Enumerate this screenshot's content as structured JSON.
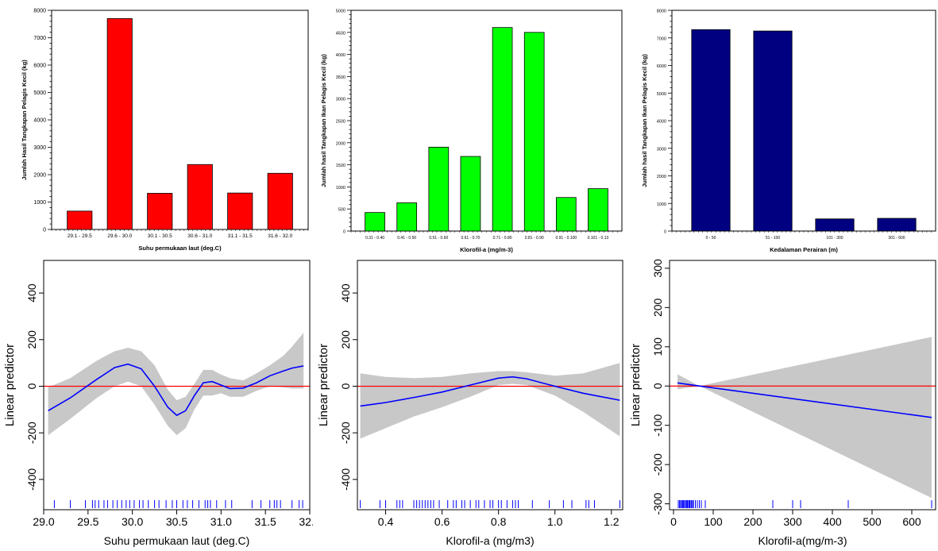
{
  "colors": {
    "red_bar": "#ff0000",
    "green_bar": "#00ff00",
    "navy_bar": "#000080",
    "gam_line": "#0000ff",
    "zero_line": "#ff0000",
    "band": "#c8c8c8",
    "rug": "#0000ff"
  },
  "chart_data": [
    {
      "type": "bar",
      "id": "bar-sst",
      "xlabel": "Suhu permukaan laut (deg.C)",
      "ylabel": "Jumlah Hasil Tangkapan Pelagis Kecil (kg)",
      "categories": [
        "29.1 - 29.5",
        "29.6 - 30.0",
        "30.1 - 30.5",
        "30.6 - 31.0",
        "31.1 - 31.5",
        "31.6 - 32.0"
      ],
      "values": [
        670,
        7700,
        1320,
        2370,
        1330,
        2050
      ],
      "ylim": [
        0,
        8000
      ],
      "yticks": [
        0,
        1000,
        2000,
        3000,
        4000,
        5000,
        6000,
        7000,
        8000
      ],
      "color": "red_bar"
    },
    {
      "type": "bar",
      "id": "bar-chl",
      "xlabel": "Klorofil-a (mg/m-3)",
      "ylabel": "Jumlah hasil Tangkapan Ikan Pelagis Kecil (kg)",
      "categories": [
        "0.31 - 0.40",
        "0.41 - 0.50",
        "0.51 - 0.60",
        "0.61 - 0.70",
        "0.71 - 0.80",
        "0.81 - 0.90",
        "0.91 - 0.100",
        "0.101 - 0.13"
      ],
      "values": [
        420,
        640,
        1900,
        1690,
        4610,
        4500,
        760,
        960
      ],
      "ylim": [
        0,
        5000
      ],
      "yticks": [
        0,
        500,
        1000,
        1500,
        2000,
        2500,
        3000,
        3500,
        4000,
        4500,
        5000
      ],
      "color": "green_bar"
    },
    {
      "type": "bar",
      "id": "bar-depth",
      "xlabel": "Kedalaman Perairan (m)",
      "ylabel": "Jumlah hasil Tangkapan Ikan  Pelagis Kecil (kg)",
      "categories": [
        "0 - 50",
        "51 - 100",
        "101 - 300",
        "301 - 600"
      ],
      "values": [
        7300,
        7250,
        440,
        460
      ],
      "ylim": [
        0,
        8000
      ],
      "yticks": [
        0,
        1000,
        2000,
        3000,
        4000,
        5000,
        6000,
        7000,
        8000
      ],
      "color": "navy_bar"
    },
    {
      "type": "line",
      "id": "gam-sst",
      "xlabel": "Suhu permukaan laut (deg.C)",
      "ylabel": "Linear predictor",
      "xlim": [
        29.0,
        32.0
      ],
      "ylim": [
        -530,
        540
      ],
      "xticks": [
        "29.0",
        "29.5",
        "30.0",
        "30.5",
        "31.0",
        "31.5",
        "32.0"
      ],
      "yticks": [
        -400,
        -200,
        0,
        200,
        400
      ],
      "x": [
        29.05,
        29.3,
        29.6,
        29.8,
        29.95,
        30.1,
        30.25,
        30.4,
        30.5,
        30.6,
        30.7,
        30.8,
        30.9,
        31.0,
        31.1,
        31.25,
        31.4,
        31.55,
        31.7,
        31.8,
        31.93
      ],
      "y": [
        -105,
        -50,
        30,
        80,
        95,
        75,
        0,
        -90,
        -125,
        -105,
        -40,
        15,
        20,
        5,
        -10,
        -8,
        15,
        45,
        65,
        78,
        87
      ],
      "upper": [
        -5,
        35,
        110,
        150,
        165,
        150,
        90,
        -15,
        -60,
        -45,
        10,
        70,
        70,
        50,
        35,
        25,
        55,
        90,
        130,
        170,
        230
      ],
      "lower": [
        -210,
        -140,
        -50,
        0,
        20,
        0,
        -80,
        -170,
        -210,
        -180,
        -100,
        -40,
        -40,
        -30,
        -45,
        -45,
        -20,
        0,
        -5,
        -10,
        -10
      ],
      "rug": [
        29.12,
        29.3,
        29.47,
        29.55,
        29.58,
        29.62,
        29.68,
        29.72,
        29.78,
        29.83,
        29.88,
        29.93,
        29.97,
        30.02,
        30.08,
        30.12,
        30.18,
        30.25,
        30.3,
        30.38,
        30.45,
        30.5,
        30.57,
        30.62,
        30.68,
        30.75,
        30.82,
        30.85,
        30.88,
        30.95,
        31.05,
        31.12,
        31.35,
        31.45,
        31.55,
        31.6,
        31.63,
        31.67,
        31.8,
        31.88,
        31.92
      ]
    },
    {
      "type": "line",
      "id": "gam-chl",
      "xlabel": "Klorofil-a (mg/m3)",
      "ylabel": "Linear predictor",
      "xlim": [
        0.3,
        1.24
      ],
      "ylim": [
        -530,
        540
      ],
      "xticks": [
        "0.4",
        "0.6",
        "0.8",
        "1.0",
        "1.2"
      ],
      "yticks": [
        -400,
        -200,
        0,
        200,
        400
      ],
      "x": [
        0.31,
        0.4,
        0.5,
        0.6,
        0.7,
        0.8,
        0.85,
        0.9,
        1.0,
        1.1,
        1.23
      ],
      "y": [
        -85,
        -70,
        -48,
        -25,
        5,
        35,
        40,
        32,
        0,
        -30,
        -60
      ],
      "upper": [
        55,
        40,
        35,
        40,
        55,
        65,
        65,
        60,
        45,
        55,
        100
      ],
      "lower": [
        -225,
        -180,
        -130,
        -90,
        -45,
        5,
        10,
        5,
        -40,
        -110,
        -215
      ],
      "rug": [
        0.31,
        0.38,
        0.4,
        0.44,
        0.45,
        0.46,
        0.5,
        0.51,
        0.52,
        0.53,
        0.54,
        0.55,
        0.56,
        0.57,
        0.59,
        0.62,
        0.64,
        0.65,
        0.67,
        0.68,
        0.7,
        0.72,
        0.73,
        0.75,
        0.77,
        0.78,
        0.8,
        0.81,
        0.83,
        0.85,
        0.86,
        0.87,
        0.92,
        0.98,
        1.03,
        1.06,
        1.11,
        1.12,
        1.14,
        1.23
      ]
    },
    {
      "type": "line",
      "id": "gam-depth",
      "xlabel": "Klorofil-a(mg/m-3)",
      "ylabel": "Linear predictor",
      "xlim": [
        -10,
        660
      ],
      "ylim": [
        -315,
        320
      ],
      "xticks": [
        "0",
        "100",
        "200",
        "300",
        "400",
        "500",
        "600"
      ],
      "yticks": [
        -300,
        -200,
        -100,
        0,
        100,
        200,
        300
      ],
      "x": [
        10,
        65,
        650
      ],
      "y": [
        8,
        0,
        -80
      ],
      "upper": [
        30,
        0,
        125
      ],
      "lower": [
        -8,
        0,
        -285
      ],
      "rug": [
        12,
        15,
        18,
        20,
        23,
        25,
        28,
        30,
        33,
        35,
        38,
        40,
        42,
        45,
        48,
        50,
        55,
        60,
        65,
        70,
        80,
        250,
        300,
        320,
        440,
        650
      ]
    }
  ]
}
